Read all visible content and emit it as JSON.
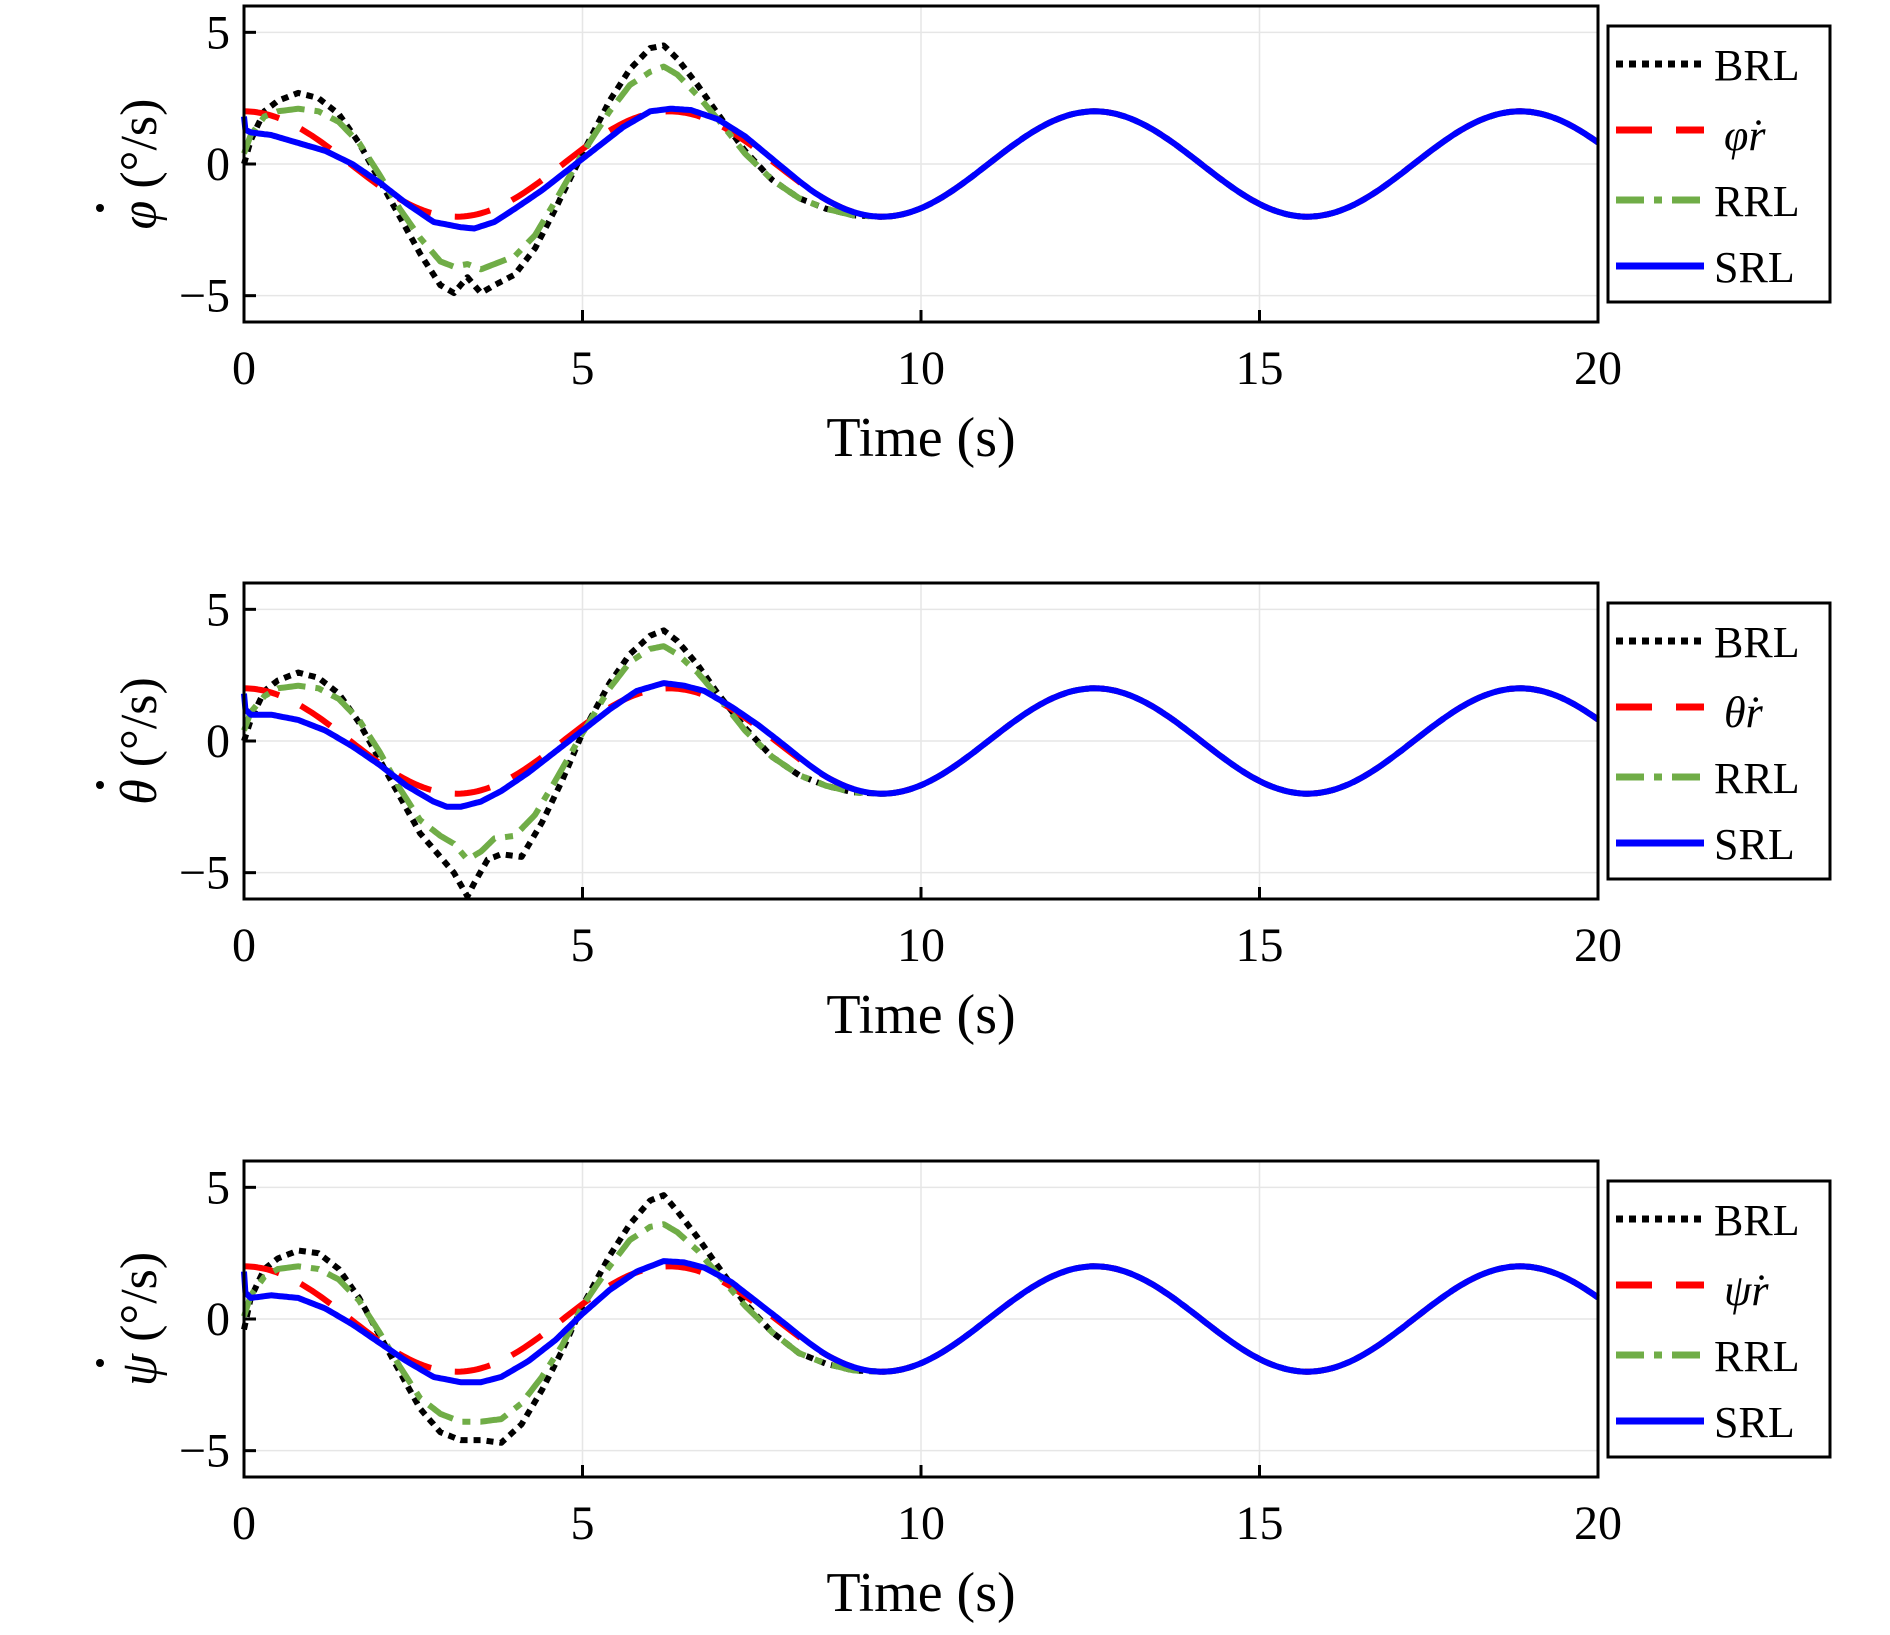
{
  "colors": {
    "BRL": "#000000",
    "ref": "#ff0000",
    "RRL": "#70ad47",
    "SRL": "#0000ff",
    "grid": "#e6e6e6"
  },
  "chart_data": [
    {
      "type": "line",
      "xlabel": "Time (s)",
      "ylabel_symbol": "φ",
      "ylabel_unit": "(°/s)",
      "xlim": [
        0,
        20
      ],
      "ylim": [
        -6,
        6
      ],
      "xticks": [
        0,
        5,
        10,
        15,
        20
      ],
      "yticks": [
        5,
        0,
        -5
      ],
      "ytick_labels": [
        "5",
        "0",
        "−5"
      ],
      "grid": true,
      "legend_position": "right",
      "series": [
        {
          "name": "BRL",
          "style": "dotted",
          "x": [
            0,
            0.1,
            0.3,
            0.5,
            0.8,
            1.1,
            1.4,
            1.7,
            2.0,
            2.3,
            2.6,
            2.9,
            3.1,
            3.3,
            3.5,
            3.7,
            4.0,
            4.3,
            4.6,
            5.0,
            5.4,
            5.7,
            6.0,
            6.2,
            6.4,
            6.7,
            7.0,
            7.4,
            7.8,
            8.2,
            8.6,
            9.0,
            9.4
          ],
          "y": [
            0,
            0.9,
            2.0,
            2.4,
            2.7,
            2.5,
            1.9,
            0.8,
            -0.6,
            -2.0,
            -3.4,
            -4.6,
            -4.9,
            -4.3,
            -4.9,
            -4.6,
            -4.2,
            -3.2,
            -1.7,
            0.4,
            2.4,
            3.6,
            4.4,
            4.5,
            4.0,
            3.0,
            1.9,
            0.5,
            -0.6,
            -1.3,
            -1.7,
            -1.95,
            -2.0
          ]
        },
        {
          "name": "φ̇r",
          "style": "dashed",
          "func": "2cos(t)"
        },
        {
          "name": "RRL",
          "style": "dashdot",
          "x": [
            0,
            0.1,
            0.3,
            0.5,
            0.8,
            1.1,
            1.4,
            1.7,
            2.0,
            2.3,
            2.6,
            2.9,
            3.1,
            3.3,
            3.5,
            3.7,
            4.0,
            4.3,
            4.6,
            5.0,
            5.4,
            5.7,
            6.0,
            6.2,
            6.4,
            6.7,
            7.0,
            7.4,
            7.8,
            8.2,
            8.6,
            9.0,
            9.4
          ],
          "y": [
            0.4,
            1.1,
            1.8,
            2.0,
            2.1,
            2.0,
            1.6,
            0.8,
            -0.4,
            -1.7,
            -2.8,
            -3.7,
            -3.9,
            -3.8,
            -4.0,
            -3.8,
            -3.5,
            -2.7,
            -1.4,
            0.4,
            2.0,
            3.0,
            3.5,
            3.7,
            3.4,
            2.6,
            1.7,
            0.4,
            -0.6,
            -1.3,
            -1.7,
            -1.95,
            -2.0
          ]
        },
        {
          "name": "SRL",
          "style": "solid",
          "x": [
            0,
            0.02,
            0.1,
            0.4,
            0.8,
            1.2,
            1.6,
            2.0,
            2.4,
            2.8,
            3.2,
            3.4,
            3.7,
            4.0,
            4.4,
            4.8,
            5.2,
            5.6,
            6.0,
            6.3,
            6.6,
            7.0,
            7.4,
            7.8
          ],
          "y": [
            1.8,
            1.3,
            1.2,
            1.1,
            0.8,
            0.5,
            0.0,
            -0.7,
            -1.5,
            -2.2,
            -2.4,
            -2.45,
            -2.2,
            -1.7,
            -1.0,
            -0.2,
            0.6,
            1.4,
            2.0,
            2.1,
            2.05,
            1.7,
            1.05,
            0.2
          ],
          "then_func": "2cos(t)"
        }
      ]
    },
    {
      "type": "line",
      "xlabel": "Time (s)",
      "ylabel_symbol": "θ",
      "ylabel_unit": "(°/s)",
      "xlim": [
        0,
        20
      ],
      "ylim": [
        -6,
        6
      ],
      "xticks": [
        0,
        5,
        10,
        15,
        20
      ],
      "yticks": [
        5,
        0,
        -5
      ],
      "ytick_labels": [
        "5",
        "0",
        "−5"
      ],
      "grid": true,
      "legend_position": "right",
      "series": [
        {
          "name": "BRL",
          "style": "dotted",
          "x": [
            0,
            0.1,
            0.3,
            0.5,
            0.8,
            1.1,
            1.4,
            1.7,
            2.0,
            2.3,
            2.6,
            2.9,
            3.1,
            3.3,
            3.4,
            3.6,
            3.8,
            4.1,
            4.4,
            4.7,
            5.0,
            5.4,
            5.7,
            6.0,
            6.2,
            6.4,
            6.7,
            7.0,
            7.4,
            7.8,
            8.2,
            8.6,
            9.0,
            9.4
          ],
          "y": [
            0,
            0.8,
            1.9,
            2.3,
            2.6,
            2.4,
            1.8,
            0.7,
            -0.7,
            -2.1,
            -3.5,
            -4.4,
            -5.0,
            -5.9,
            -5.4,
            -4.5,
            -4.3,
            -4.4,
            -3.1,
            -1.5,
            0.3,
            2.2,
            3.3,
            4.0,
            4.2,
            3.8,
            2.9,
            1.8,
            0.5,
            -0.6,
            -1.3,
            -1.7,
            -1.95,
            -2.0
          ]
        },
        {
          "name": "θ̇r",
          "style": "dashed",
          "func": "2cos(t)"
        },
        {
          "name": "RRL",
          "style": "dashdot",
          "x": [
            0,
            0.1,
            0.3,
            0.5,
            0.8,
            1.1,
            1.4,
            1.7,
            2.0,
            2.3,
            2.6,
            2.9,
            3.1,
            3.3,
            3.5,
            3.7,
            4.0,
            4.3,
            4.6,
            5.0,
            5.4,
            5.7,
            6.0,
            6.2,
            6.4,
            6.7,
            7.0,
            7.4,
            7.8,
            8.2,
            8.6,
            9.0,
            9.4
          ],
          "y": [
            0.4,
            1.1,
            1.7,
            2.0,
            2.1,
            2.0,
            1.6,
            0.8,
            -0.4,
            -1.8,
            -3.0,
            -3.6,
            -3.9,
            -4.5,
            -4.2,
            -3.7,
            -3.6,
            -2.8,
            -1.5,
            0.3,
            2.0,
            3.0,
            3.5,
            3.6,
            3.3,
            2.6,
            1.7,
            0.4,
            -0.6,
            -1.3,
            -1.7,
            -1.95,
            -2.0
          ]
        },
        {
          "name": "SRL",
          "style": "solid",
          "x": [
            0,
            0.02,
            0.1,
            0.4,
            0.8,
            1.2,
            1.6,
            2.0,
            2.4,
            2.8,
            3.0,
            3.2,
            3.5,
            3.8,
            4.2,
            4.6,
            5.0,
            5.4,
            5.8,
            6.2,
            6.5,
            6.8,
            7.2,
            7.6,
            8.0
          ],
          "y": [
            1.8,
            1.2,
            1.0,
            1.0,
            0.8,
            0.4,
            -0.2,
            -0.9,
            -1.7,
            -2.3,
            -2.5,
            -2.5,
            -2.3,
            -1.9,
            -1.2,
            -0.4,
            0.4,
            1.2,
            1.9,
            2.2,
            2.1,
            1.9,
            1.3,
            0.6,
            -0.2
          ],
          "then_func": "2cos(t)"
        }
      ]
    },
    {
      "type": "line",
      "xlabel": "Time (s)",
      "ylabel_symbol": "ψ",
      "ylabel_unit": "(°/s)",
      "xlim": [
        0,
        20
      ],
      "ylim": [
        -6,
        6
      ],
      "xticks": [
        0,
        5,
        10,
        15,
        20
      ],
      "yticks": [
        5,
        0,
        -5
      ],
      "ytick_labels": [
        "5",
        "0",
        "−5"
      ],
      "grid": true,
      "legend_position": "right",
      "series": [
        {
          "name": "BRL",
          "style": "dotted",
          "x": [
            0,
            0.1,
            0.3,
            0.5,
            0.8,
            1.1,
            1.4,
            1.7,
            2.0,
            2.3,
            2.6,
            2.9,
            3.2,
            3.5,
            3.8,
            4.1,
            4.4,
            4.7,
            5.0,
            5.4,
            5.7,
            6.0,
            6.2,
            6.4,
            6.7,
            7.0,
            7.4,
            7.8,
            8.2,
            8.6,
            9.0,
            9.4
          ],
          "y": [
            -0.4,
            0.8,
            1.9,
            2.3,
            2.6,
            2.5,
            1.9,
            0.8,
            -0.6,
            -2.0,
            -3.4,
            -4.3,
            -4.6,
            -4.6,
            -4.7,
            -4.0,
            -2.7,
            -1.2,
            0.5,
            2.4,
            3.6,
            4.5,
            4.7,
            4.1,
            3.1,
            2.0,
            0.6,
            -0.5,
            -1.3,
            -1.7,
            -1.95,
            -2.0
          ]
        },
        {
          "name": "ψ̇r",
          "style": "dashed",
          "func": "2cos(t)"
        },
        {
          "name": "RRL",
          "style": "dashdot",
          "x": [
            0,
            0.1,
            0.3,
            0.5,
            0.8,
            1.1,
            1.4,
            1.7,
            2.0,
            2.3,
            2.6,
            2.9,
            3.2,
            3.5,
            3.8,
            4.1,
            4.4,
            4.7,
            5.0,
            5.4,
            5.7,
            6.0,
            6.2,
            6.4,
            6.7,
            7.0,
            7.4,
            7.8,
            8.2,
            8.6,
            9.0,
            9.4
          ],
          "y": [
            0.1,
            0.9,
            1.6,
            1.9,
            2.0,
            1.9,
            1.5,
            0.7,
            -0.5,
            -1.8,
            -3.0,
            -3.6,
            -3.9,
            -3.9,
            -3.8,
            -3.2,
            -2.2,
            -1.0,
            0.5,
            2.0,
            3.0,
            3.5,
            3.6,
            3.3,
            2.6,
            1.7,
            0.5,
            -0.5,
            -1.3,
            -1.7,
            -1.95,
            -2.0
          ]
        },
        {
          "name": "SRL",
          "style": "solid",
          "x": [
            0,
            0.02,
            0.1,
            0.4,
            0.8,
            1.2,
            1.6,
            2.0,
            2.4,
            2.8,
            3.2,
            3.5,
            3.8,
            4.2,
            4.6,
            5.0,
            5.4,
            5.8,
            6.2,
            6.5,
            6.8,
            7.2,
            7.6,
            8.0
          ],
          "y": [
            1.8,
            1.0,
            0.8,
            0.9,
            0.8,
            0.4,
            -0.2,
            -0.9,
            -1.6,
            -2.2,
            -2.4,
            -2.4,
            -2.2,
            -1.6,
            -0.8,
            0.2,
            1.1,
            1.8,
            2.2,
            2.15,
            1.95,
            1.4,
            0.6,
            -0.2
          ],
          "then_func": "2cos(t)"
        }
      ]
    }
  ]
}
